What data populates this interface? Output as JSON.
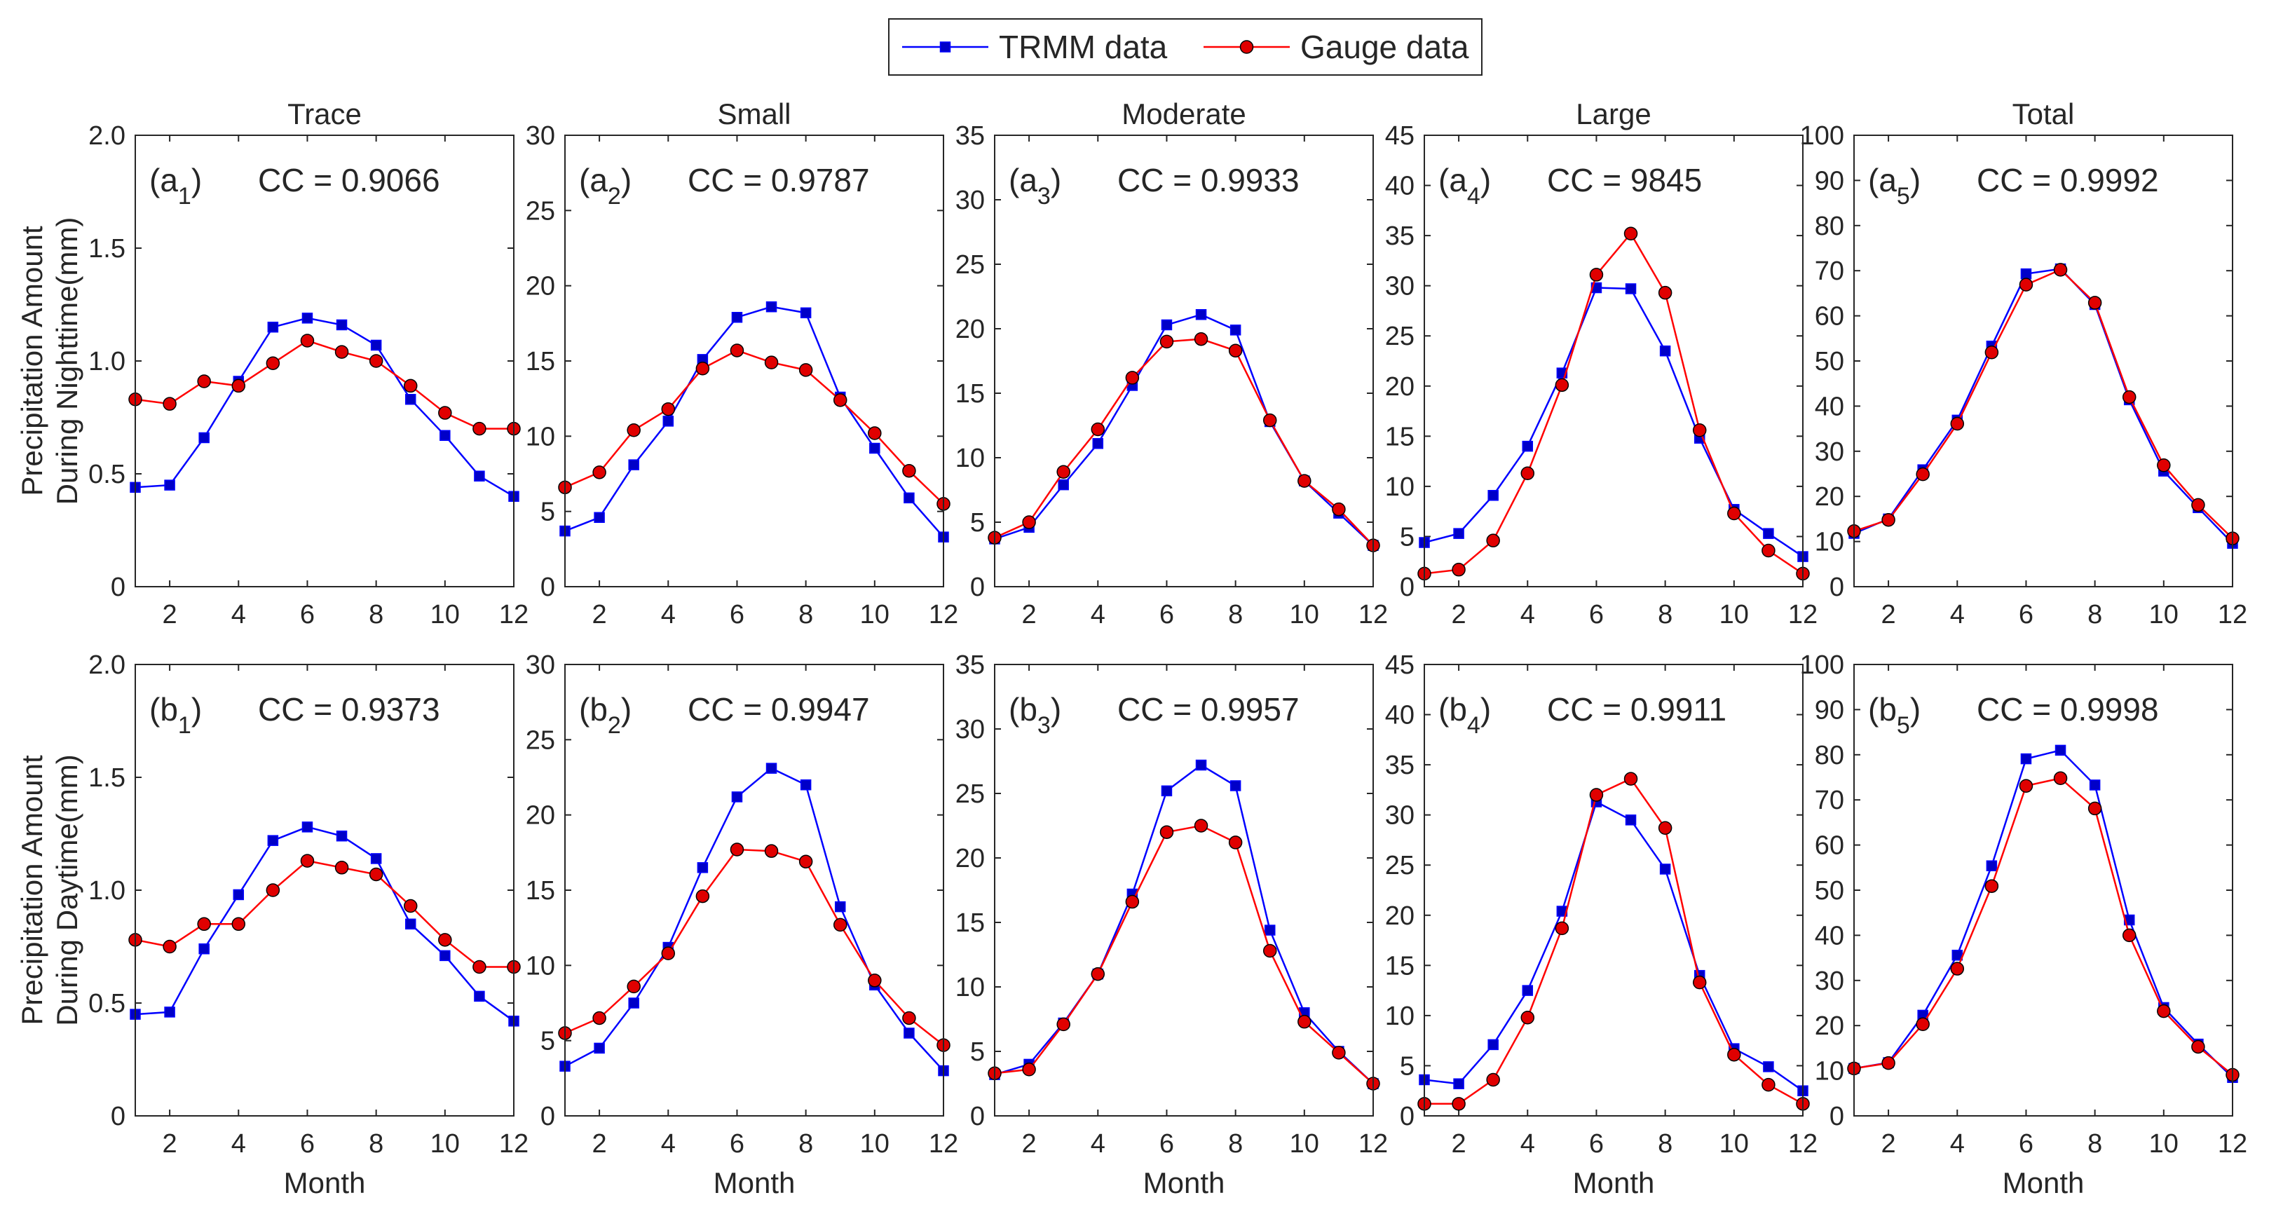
{
  "legend": {
    "series": [
      {
        "name": "TRMM data",
        "color": "#0000ff",
        "marker": "square",
        "marker_fill": "#0000c8"
      },
      {
        "name": "Gauge data",
        "color": "#ff0000",
        "marker": "circle",
        "marker_fill": "#e00000"
      }
    ]
  },
  "chart_data": [
    {
      "type": "line",
      "row": 0,
      "col": 0,
      "title": "Trace",
      "panel_label": [
        "(a",
        "1",
        ")"
      ],
      "cc_text": "CC = 0.9066",
      "ylabel": [
        "Precipitation Amount",
        "During Nighttime(mm)"
      ],
      "xlabel": "",
      "xlim": [
        1,
        12
      ],
      "ylim": [
        0,
        2.0
      ],
      "xticks": [
        2,
        4,
        6,
        8,
        10,
        12
      ],
      "yticks": [
        "0",
        "0.5",
        "1.0",
        "1.5",
        "2.0"
      ],
      "x": [
        1,
        2,
        3,
        4,
        5,
        6,
        7,
        8,
        9,
        10,
        11,
        12
      ],
      "series": [
        {
          "name": "TRMM data",
          "values": [
            0.44,
            0.45,
            0.66,
            0.91,
            1.15,
            1.19,
            1.16,
            1.07,
            0.83,
            0.67,
            0.49,
            0.4
          ]
        },
        {
          "name": "Gauge data",
          "values": [
            0.83,
            0.81,
            0.91,
            0.89,
            0.99,
            1.09,
            1.04,
            1.0,
            0.89,
            0.77,
            0.7,
            0.7
          ]
        }
      ]
    },
    {
      "type": "line",
      "row": 0,
      "col": 1,
      "title": "Small",
      "panel_label": [
        "(a",
        "2",
        ")"
      ],
      "cc_text": "CC = 0.9787",
      "ylabel": [],
      "xlabel": "",
      "xlim": [
        1,
        12
      ],
      "ylim": [
        0,
        30
      ],
      "xticks": [
        2,
        4,
        6,
        8,
        10,
        12
      ],
      "yticks": [
        "0",
        "5",
        "10",
        "15",
        "20",
        "25",
        "30"
      ],
      "x": [
        1,
        2,
        3,
        4,
        5,
        6,
        7,
        8,
        9,
        10,
        11,
        12
      ],
      "series": [
        {
          "name": "TRMM data",
          "values": [
            3.7,
            4.6,
            8.1,
            11.0,
            15.1,
            17.9,
            18.6,
            18.2,
            12.6,
            9.2,
            5.9,
            3.3
          ]
        },
        {
          "name": "Gauge data",
          "values": [
            6.6,
            7.6,
            10.4,
            11.8,
            14.5,
            15.7,
            14.9,
            14.4,
            12.4,
            10.2,
            7.7,
            5.5
          ]
        }
      ]
    },
    {
      "type": "line",
      "row": 0,
      "col": 2,
      "title": "Moderate",
      "panel_label": [
        "(a",
        "3",
        ")"
      ],
      "cc_text": "CC = 0.9933",
      "ylabel": [],
      "xlabel": "",
      "xlim": [
        1,
        12
      ],
      "ylim": [
        0,
        35
      ],
      "xticks": [
        2,
        4,
        6,
        8,
        10,
        12
      ],
      "yticks": [
        "0",
        "5",
        "10",
        "15",
        "20",
        "25",
        "30",
        "35"
      ],
      "x": [
        1,
        2,
        3,
        4,
        5,
        6,
        7,
        8,
        9,
        10,
        11,
        12
      ],
      "series": [
        {
          "name": "TRMM data",
          "values": [
            3.7,
            4.6,
            7.9,
            11.1,
            15.6,
            20.3,
            21.1,
            19.9,
            12.8,
            8.2,
            5.7,
            3.2
          ]
        },
        {
          "name": "Gauge data",
          "values": [
            3.8,
            5.0,
            8.9,
            12.2,
            16.2,
            19.0,
            19.2,
            18.3,
            12.9,
            8.2,
            6.0,
            3.2
          ]
        }
      ]
    },
    {
      "type": "line",
      "row": 0,
      "col": 3,
      "title": "Large",
      "panel_label": [
        "(a",
        "4",
        ")"
      ],
      "cc_text": "CC = 9845",
      "ylabel": [],
      "xlabel": "",
      "xlim": [
        1,
        12
      ],
      "ylim": [
        0,
        45
      ],
      "xticks": [
        2,
        4,
        6,
        8,
        10,
        12
      ],
      "yticks": [
        "0",
        "5",
        "10",
        "15",
        "20",
        "25",
        "30",
        "35",
        "40",
        "45"
      ],
      "x": [
        1,
        2,
        3,
        4,
        5,
        6,
        7,
        8,
        9,
        10,
        11,
        12
      ],
      "series": [
        {
          "name": "TRMM data",
          "values": [
            4.4,
            5.3,
            9.1,
            14.0,
            21.3,
            29.8,
            29.7,
            23.5,
            14.8,
            7.7,
            5.3,
            3.0
          ]
        },
        {
          "name": "Gauge data",
          "values": [
            1.3,
            1.7,
            4.6,
            11.3,
            20.1,
            31.1,
            35.2,
            29.3,
            15.6,
            7.3,
            3.6,
            1.3
          ]
        }
      ]
    },
    {
      "type": "line",
      "row": 0,
      "col": 4,
      "title": "Total",
      "panel_label": [
        "(a",
        "5",
        ")"
      ],
      "cc_text": "CC = 0.9992",
      "ylabel": [],
      "xlabel": "",
      "xlim": [
        1,
        12
      ],
      "ylim": [
        0,
        100
      ],
      "xticks": [
        2,
        4,
        6,
        8,
        10,
        12
      ],
      "yticks": [
        "0",
        "10",
        "20",
        "30",
        "40",
        "50",
        "60",
        "70",
        "80",
        "90",
        "100"
      ],
      "x": [
        1,
        2,
        3,
        4,
        5,
        6,
        7,
        8,
        9,
        10,
        11,
        12
      ],
      "series": [
        {
          "name": "TRMM data",
          "values": [
            11.8,
            15.0,
            25.9,
            36.9,
            53.3,
            69.3,
            70.4,
            62.5,
            41.4,
            25.6,
            17.5,
            9.6
          ]
        },
        {
          "name": "Gauge data",
          "values": [
            12.3,
            14.8,
            24.9,
            36.1,
            51.9,
            66.9,
            70.2,
            62.9,
            42.0,
            26.9,
            18.1,
            10.7
          ]
        }
      ]
    },
    {
      "type": "line",
      "row": 1,
      "col": 0,
      "title": "",
      "panel_label": [
        "(b",
        "1",
        ")"
      ],
      "cc_text": "CC = 0.9373",
      "ylabel": [
        "Precipitation Amount",
        "During Daytime(mm)"
      ],
      "xlabel": "Month",
      "xlim": [
        1,
        12
      ],
      "ylim": [
        0,
        2.0
      ],
      "xticks": [
        2,
        4,
        6,
        8,
        10,
        12
      ],
      "yticks": [
        "0",
        "0.5",
        "1.0",
        "1.5",
        "2.0"
      ],
      "x": [
        1,
        2,
        3,
        4,
        5,
        6,
        7,
        8,
        9,
        10,
        11,
        12
      ],
      "series": [
        {
          "name": "TRMM data",
          "values": [
            0.45,
            0.46,
            0.74,
            0.98,
            1.22,
            1.28,
            1.24,
            1.14,
            0.85,
            0.71,
            0.53,
            0.42
          ]
        },
        {
          "name": "Gauge data",
          "values": [
            0.78,
            0.75,
            0.85,
            0.85,
            1.0,
            1.13,
            1.1,
            1.07,
            0.93,
            0.78,
            0.66,
            0.66
          ]
        }
      ]
    },
    {
      "type": "line",
      "row": 1,
      "col": 1,
      "title": "",
      "panel_label": [
        "(b",
        "2",
        ")"
      ],
      "cc_text": "CC = 0.9947",
      "ylabel": [],
      "xlabel": "Month",
      "xlim": [
        1,
        12
      ],
      "ylim": [
        0,
        30
      ],
      "xticks": [
        2,
        4,
        6,
        8,
        10,
        12
      ],
      "yticks": [
        "0",
        "5",
        "10",
        "15",
        "20",
        "25",
        "30"
      ],
      "x": [
        1,
        2,
        3,
        4,
        5,
        6,
        7,
        8,
        9,
        10,
        11,
        12
      ],
      "series": [
        {
          "name": "TRMM data",
          "values": [
            3.3,
            4.5,
            7.5,
            11.2,
            16.5,
            21.2,
            23.1,
            22.0,
            13.9,
            8.7,
            5.5,
            3.0
          ]
        },
        {
          "name": "Gauge data",
          "values": [
            5.5,
            6.5,
            8.6,
            10.8,
            14.6,
            17.7,
            17.6,
            16.9,
            12.7,
            9.0,
            6.5,
            4.7
          ]
        }
      ]
    },
    {
      "type": "line",
      "row": 1,
      "col": 2,
      "title": "",
      "panel_label": [
        "(b",
        "3",
        ")"
      ],
      "cc_text": "CC = 0.9957",
      "ylabel": [],
      "xlabel": "Month",
      "xlim": [
        1,
        12
      ],
      "ylim": [
        0,
        35
      ],
      "xticks": [
        2,
        4,
        6,
        8,
        10,
        12
      ],
      "yticks": [
        "0",
        "5",
        "10",
        "15",
        "20",
        "25",
        "30",
        "35"
      ],
      "x": [
        1,
        2,
        3,
        4,
        5,
        6,
        7,
        8,
        9,
        10,
        11,
        12
      ],
      "series": [
        {
          "name": "TRMM data",
          "values": [
            3.2,
            4.0,
            7.2,
            11.0,
            17.2,
            25.2,
            27.2,
            25.6,
            14.4,
            8.0,
            5.0,
            2.5
          ]
        },
        {
          "name": "Gauge data",
          "values": [
            3.3,
            3.6,
            7.1,
            11.0,
            16.6,
            22.0,
            22.5,
            21.2,
            12.8,
            7.3,
            4.9,
            2.5
          ]
        }
      ]
    },
    {
      "type": "line",
      "row": 1,
      "col": 3,
      "title": "",
      "panel_label": [
        "(b",
        "4",
        ")"
      ],
      "cc_text": "CC = 0.9911",
      "ylabel": [],
      "xlabel": "Month",
      "xlim": [
        1,
        12
      ],
      "ylim": [
        0,
        45
      ],
      "xticks": [
        2,
        4,
        6,
        8,
        10,
        12
      ],
      "yticks": [
        "0",
        "5",
        "10",
        "15",
        "20",
        "25",
        "30",
        "35",
        "40",
        "45"
      ],
      "x": [
        1,
        2,
        3,
        4,
        5,
        6,
        7,
        8,
        9,
        10,
        11,
        12
      ],
      "series": [
        {
          "name": "TRMM data",
          "values": [
            3.6,
            3.2,
            7.1,
            12.5,
            20.4,
            31.3,
            29.5,
            24.6,
            14.0,
            6.7,
            4.9,
            2.5
          ]
        },
        {
          "name": "Gauge data",
          "values": [
            1.2,
            1.2,
            3.6,
            9.8,
            18.7,
            32.0,
            33.6,
            28.7,
            13.3,
            6.1,
            3.1,
            1.2
          ]
        }
      ]
    },
    {
      "type": "line",
      "row": 1,
      "col": 4,
      "title": "",
      "panel_label": [
        "(b",
        "5",
        ")"
      ],
      "cc_text": "CC = 0.9998",
      "ylabel": [],
      "xlabel": "Month",
      "xlim": [
        1,
        12
      ],
      "ylim": [
        0,
        100
      ],
      "xticks": [
        2,
        4,
        6,
        8,
        10,
        12
      ],
      "yticks": [
        "0",
        "10",
        "20",
        "30",
        "40",
        "50",
        "60",
        "70",
        "80",
        "90",
        "100"
      ],
      "x": [
        1,
        2,
        3,
        4,
        5,
        6,
        7,
        8,
        9,
        10,
        11,
        12
      ],
      "series": [
        {
          "name": "TRMM data",
          "values": [
            10.5,
            11.8,
            22.3,
            35.6,
            55.4,
            79.1,
            81.0,
            73.3,
            43.4,
            24.0,
            15.9,
            8.5
          ]
        },
        {
          "name": "Gauge data",
          "values": [
            10.5,
            11.7,
            20.3,
            32.6,
            50.9,
            73.1,
            74.8,
            68.1,
            40.0,
            23.2,
            15.3,
            9.1
          ]
        }
      ]
    }
  ]
}
